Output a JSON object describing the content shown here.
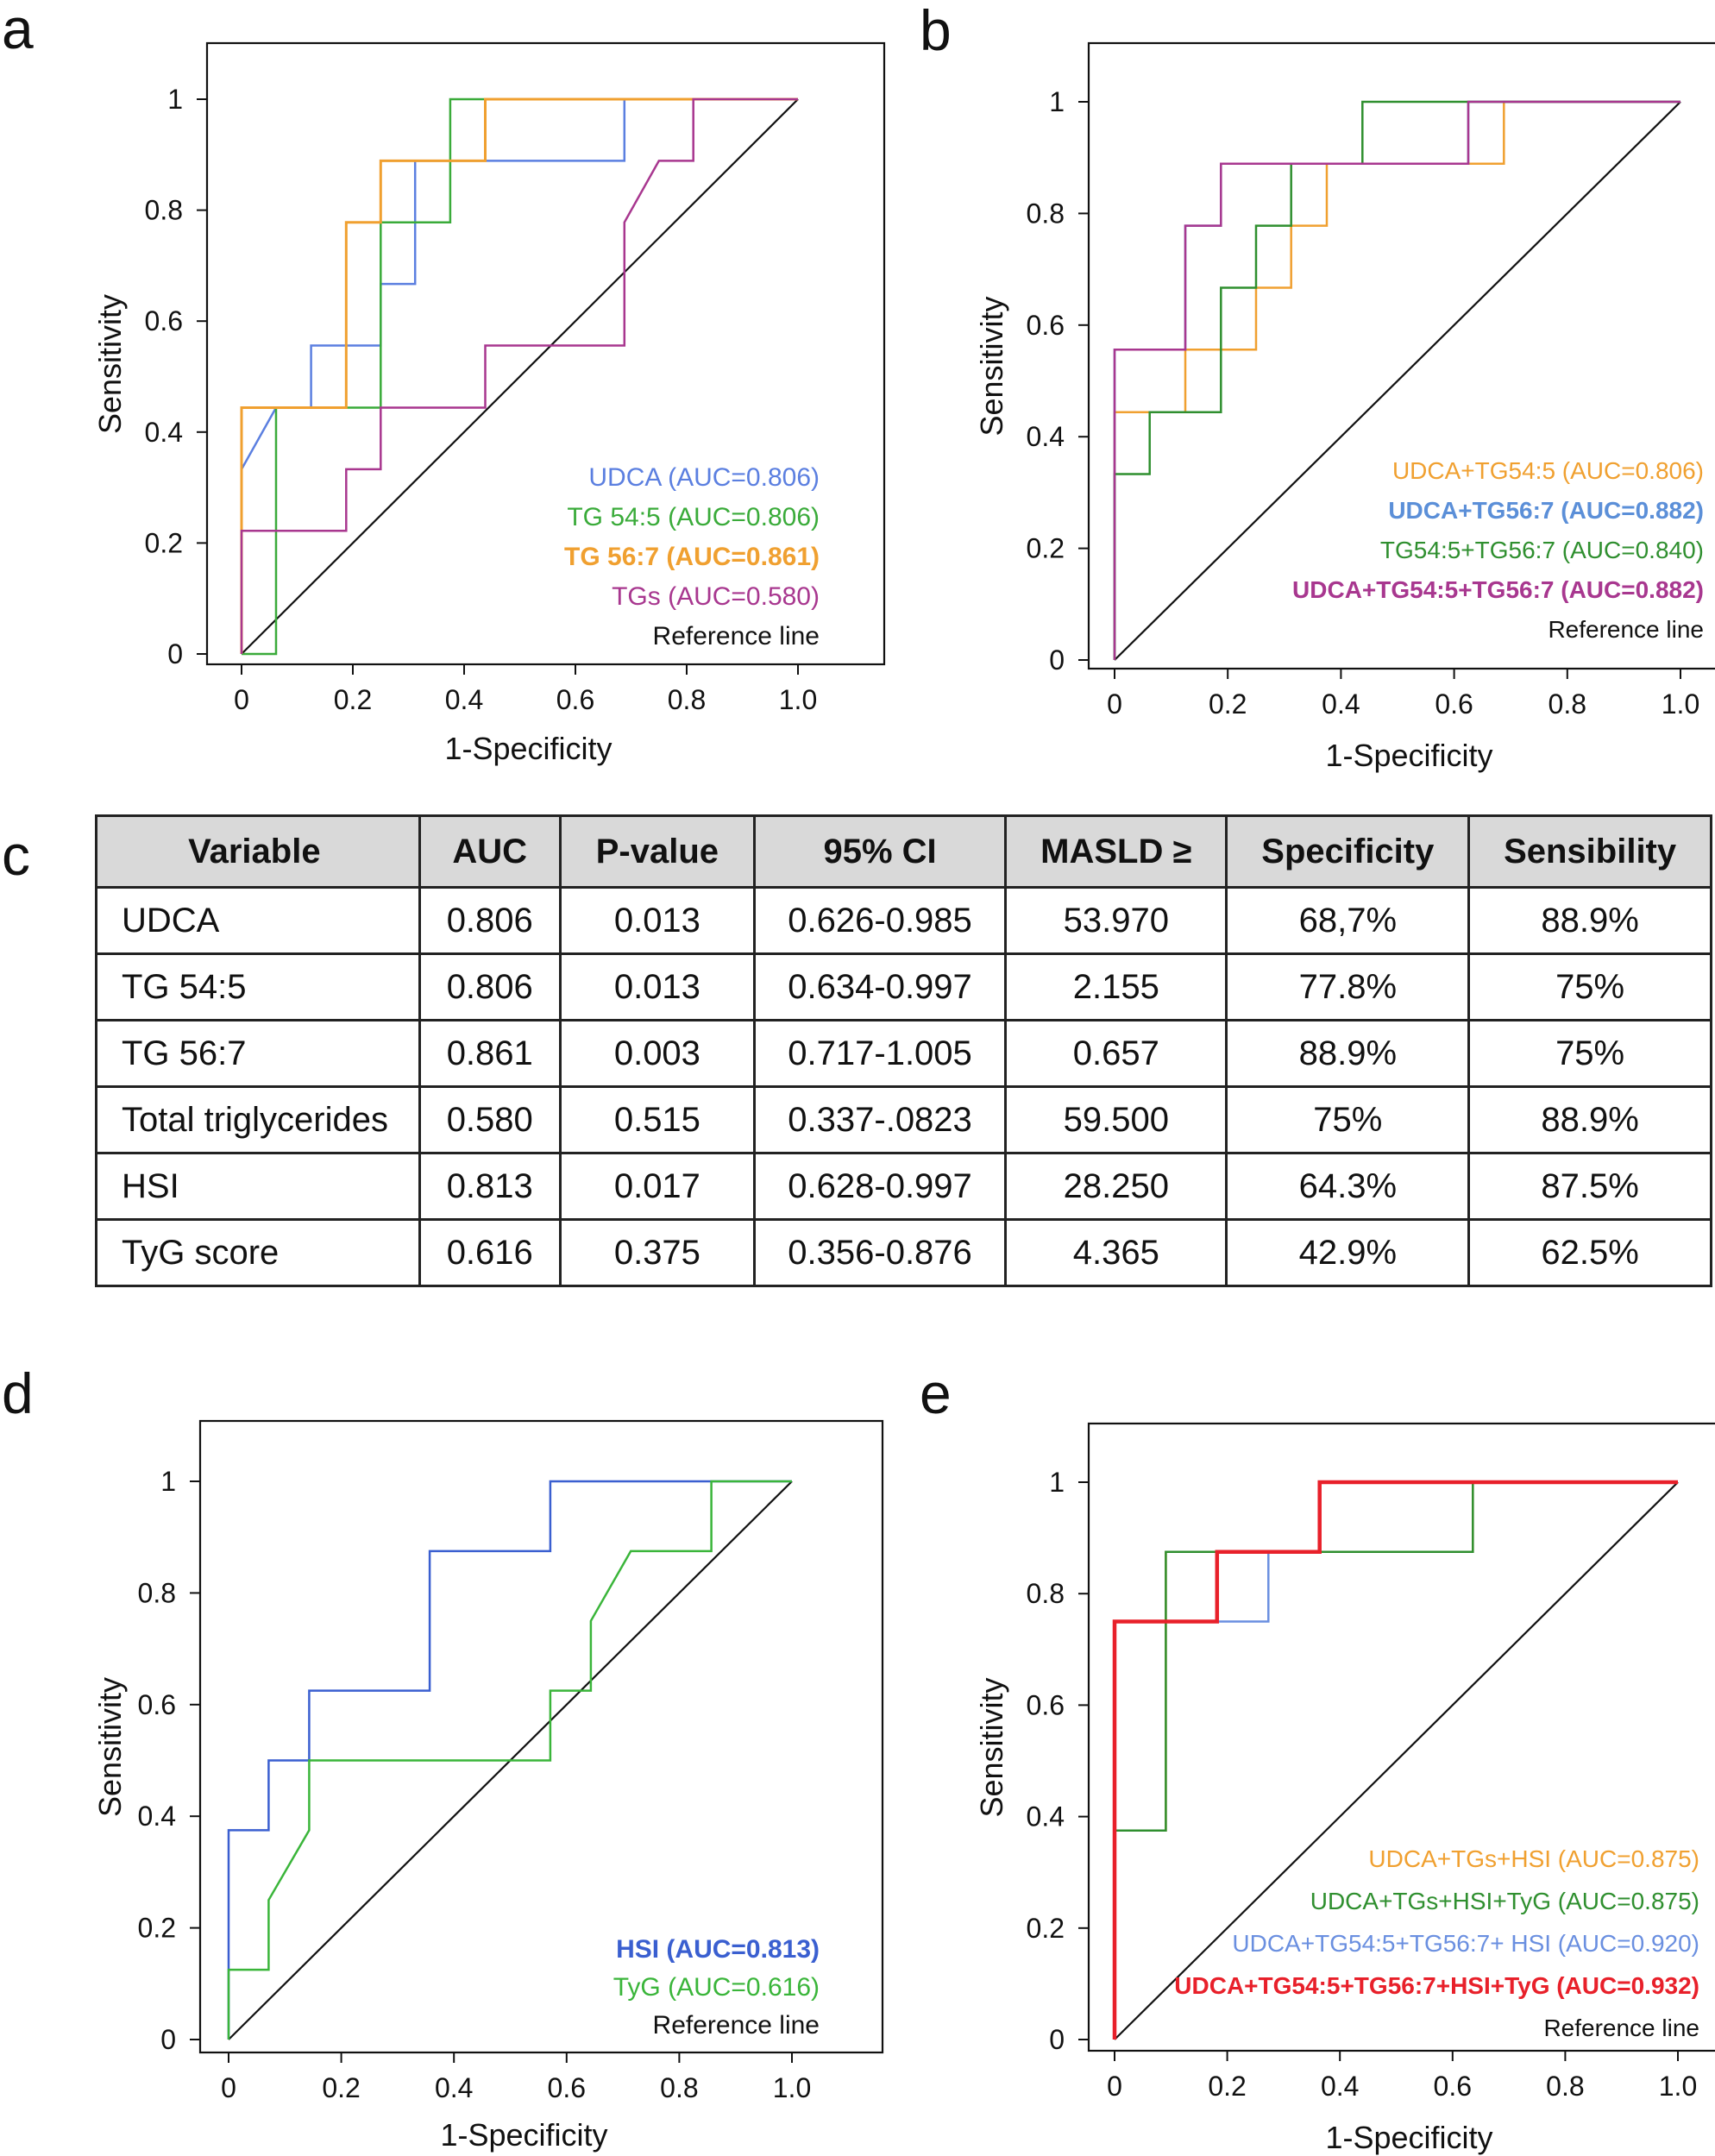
{
  "panel_letters": [
    "a",
    "b",
    "c",
    "d",
    "e"
  ],
  "chart_data": [
    {
      "panel": "a",
      "type": "line",
      "xlabel": "1-Specificity",
      "ylabel": "Sensitivity",
      "xlim": [
        0,
        1
      ],
      "ylim": [
        0,
        1
      ],
      "xticks": [
        "0",
        "0.2",
        "0.4",
        "0.6",
        "0.8",
        "1.0"
      ],
      "yticks": [
        "0",
        "0.2",
        "0.4",
        "0.6",
        "0.8",
        "1"
      ],
      "series": [
        {
          "name": "UDCA (AUC=0.806)",
          "color": "#5b7fe0",
          "bold": false,
          "width": 2.5,
          "x": [
            0,
            0,
            0,
            0.062,
            0.125,
            0.125,
            0.25,
            0.25,
            0.312,
            0.312,
            0.375,
            0.438,
            0.688,
            0.688,
            1
          ],
          "y": [
            0,
            0.333,
            0.333,
            0.444,
            0.444,
            0.556,
            0.556,
            0.667,
            0.667,
            0.889,
            0.889,
            0.889,
            0.889,
            1,
            1
          ]
        },
        {
          "name": "TG 54:5 (AUC=0.806)",
          "color": "#3aab3a",
          "bold": false,
          "width": 2.5,
          "x": [
            0,
            0.062,
            0.062,
            0.25,
            0.25,
            0.375,
            0.375,
            0.438,
            1
          ],
          "y": [
            0,
            0,
            0.444,
            0.444,
            0.778,
            0.778,
            1,
            1,
            1
          ]
        },
        {
          "name": "TG 56:7 (AUC=0.861)",
          "color": "#f0a030",
          "bold": true,
          "width": 3,
          "x": [
            0,
            0,
            0.188,
            0.188,
            0.25,
            0.25,
            0.438,
            0.438,
            1
          ],
          "y": [
            0,
            0.444,
            0.444,
            0.778,
            0.778,
            0.889,
            0.889,
            1,
            1
          ]
        },
        {
          "name": "TGs (AUC=0.580)",
          "color": "#a8378f",
          "bold": false,
          "width": 2.5,
          "x": [
            0,
            0,
            0.188,
            0.188,
            0.25,
            0.25,
            0.438,
            0.438,
            0.688,
            0.688,
            0.75,
            0.812,
            0.812,
            1
          ],
          "y": [
            0,
            0.222,
            0.222,
            0.333,
            0.333,
            0.444,
            0.444,
            0.556,
            0.556,
            0.778,
            0.889,
            0.889,
            1,
            1
          ]
        },
        {
          "name": "Reference line",
          "color": "#111111",
          "bold": false,
          "width": 2.2,
          "x": [
            0,
            1
          ],
          "y": [
            0,
            1
          ]
        }
      ]
    },
    {
      "panel": "b",
      "type": "line",
      "xlabel": "1-Specificity",
      "ylabel": "Sensitivity",
      "xlim": [
        0,
        1
      ],
      "ylim": [
        0,
        1
      ],
      "xticks": [
        "0",
        "0.2",
        "0.4",
        "0.6",
        "0.8",
        "1.0"
      ],
      "yticks": [
        "0",
        "0.2",
        "0.4",
        "0.6",
        "0.8",
        "1"
      ],
      "series": [
        {
          "name": "UDCA+TG54:5 (AUC=0.806)",
          "color": "#f0a030",
          "bold": false,
          "width": 2.5,
          "x": [
            0,
            0,
            0.062,
            0.125,
            0.125,
            0.25,
            0.25,
            0.312,
            0.312,
            0.375,
            0.375,
            0.625,
            0.688,
            0.688,
            1
          ],
          "y": [
            0,
            0.444,
            0.444,
            0.444,
            0.556,
            0.556,
            0.667,
            0.667,
            0.778,
            0.778,
            0.889,
            0.889,
            0.889,
            1,
            1
          ]
        },
        {
          "name": "UDCA+TG56:7 (AUC=0.882)",
          "color": "#5b8fd8",
          "bold": true,
          "width": 2.5,
          "x": [
            0,
            0,
            0.125,
            0.125,
            0.188,
            0.188,
            0.625,
            0.625,
            1
          ],
          "y": [
            0,
            0.556,
            0.556,
            0.778,
            0.778,
            0.889,
            0.889,
            1,
            1
          ]
        },
        {
          "name": "TG54:5+TG56:7 (AUC=0.840)",
          "color": "#2f8f2f",
          "bold": false,
          "width": 2.5,
          "x": [
            0,
            0,
            0.062,
            0.062,
            0.188,
            0.188,
            0.25,
            0.25,
            0.312,
            0.312,
            0.438,
            0.438,
            1
          ],
          "y": [
            0,
            0.333,
            0.333,
            0.444,
            0.444,
            0.667,
            0.667,
            0.778,
            0.778,
            0.889,
            0.889,
            1,
            1
          ]
        },
        {
          "name": "UDCA+TG54:5+TG56:7 (AUC=0.882)",
          "color": "#a8378f",
          "bold": true,
          "width": 2.5,
          "x": [
            0,
            0,
            0.125,
            0.125,
            0.188,
            0.188,
            0.625,
            0.625,
            1
          ],
          "y": [
            0,
            0.556,
            0.556,
            0.778,
            0.778,
            0.889,
            0.889,
            1,
            1
          ]
        },
        {
          "name": "Reference line",
          "color": "#111111",
          "bold": false,
          "width": 2.2,
          "x": [
            0,
            1
          ],
          "y": [
            0,
            1
          ]
        }
      ]
    },
    {
      "panel": "c",
      "type": "table",
      "columns": [
        "Variable",
        "AUC",
        "P-value",
        "95% CI",
        "MASLD ≥",
        "Specificity",
        "Sensibility"
      ],
      "rows": [
        [
          "UDCA",
          "0.806",
          "0.013",
          "0.626-0.985",
          "53.970",
          "68,7%",
          "88.9%"
        ],
        [
          "TG 54:5",
          "0.806",
          "0.013",
          "0.634-0.997",
          "2.155",
          "77.8%",
          "75%"
        ],
        [
          "TG 56:7",
          "0.861",
          "0.003",
          "0.717-1.005",
          "0.657",
          "88.9%",
          "75%"
        ],
        [
          "Total triglycerides",
          "0.580",
          "0.515",
          "0.337-.0823",
          "59.500",
          "75%",
          "88.9%"
        ],
        [
          "HSI",
          "0.813",
          "0.017",
          "0.628-0.997",
          "28.250",
          "64.3%",
          "87.5%"
        ],
        [
          "TyG score",
          "0.616",
          "0.375",
          "0.356-0.876",
          "4.365",
          "42.9%",
          "62.5%"
        ]
      ]
    },
    {
      "panel": "d",
      "type": "line",
      "xlabel": "1-Specificity",
      "ylabel": "Sensitivity",
      "xlim": [
        0,
        1
      ],
      "ylim": [
        0,
        1
      ],
      "xticks": [
        "0",
        "0.2",
        "0.4",
        "0.6",
        "0.8",
        "1.0"
      ],
      "yticks": [
        "0",
        "0.2",
        "0.4",
        "0.6",
        "0.8",
        "1"
      ],
      "series": [
        {
          "name": "HSI (AUC=0.813)",
          "color": "#3a5fd0",
          "bold": true,
          "width": 2.5,
          "x": [
            0,
            0,
            0.071,
            0.071,
            0.143,
            0.143,
            0.357,
            0.357,
            0.571,
            0.571,
            1
          ],
          "y": [
            0,
            0.375,
            0.375,
            0.5,
            0.5,
            0.625,
            0.625,
            0.875,
            0.875,
            1,
            1
          ]
        },
        {
          "name": "TyG (AUC=0.616)",
          "color": "#3ab53a",
          "bold": false,
          "width": 2.5,
          "x": [
            0,
            0,
            0.071,
            0.071,
            0.143,
            0.143,
            0.571,
            0.571,
            0.643,
            0.643,
            0.714,
            0.857,
            0.857,
            1
          ],
          "y": [
            0,
            0.125,
            0.125,
            0.25,
            0.375,
            0.5,
            0.5,
            0.625,
            0.625,
            0.75,
            0.875,
            0.875,
            1,
            1
          ]
        },
        {
          "name": "Reference line",
          "color": "#111111",
          "bold": false,
          "width": 2.2,
          "x": [
            0,
            1
          ],
          "y": [
            0,
            1
          ]
        }
      ]
    },
    {
      "panel": "e",
      "type": "line",
      "xlabel": "1-Specificity",
      "ylabel": "Sensitivity",
      "xlim": [
        0,
        1
      ],
      "ylim": [
        0,
        1
      ],
      "xticks": [
        "0",
        "0.2",
        "0.4",
        "0.6",
        "0.8",
        "1.0"
      ],
      "yticks": [
        "0",
        "0.2",
        "0.4",
        "0.6",
        "0.8",
        "1"
      ],
      "series": [
        {
          "name": "UDCA+TGs+HSI (AUC=0.875)",
          "color": "#f0a030",
          "bold": false,
          "width": 2.5,
          "x": [
            0,
            0,
            0.091,
            0.091,
            0.636,
            0.636,
            1
          ],
          "y": [
            0,
            0.375,
            0.375,
            0.875,
            0.875,
            1,
            1
          ]
        },
        {
          "name": "UDCA+TGs+HSI+TyG (AUC=0.875)",
          "color": "#2f8f2f",
          "bold": false,
          "width": 2.5,
          "x": [
            0,
            0,
            0.091,
            0.091,
            0.636,
            0.636,
            1
          ],
          "y": [
            0,
            0.375,
            0.375,
            0.875,
            0.875,
            1,
            1
          ]
        },
        {
          "name": "UDCA+TG54:5+TG56:7+ HSI (AUC=0.920)",
          "color": "#6a8fe0",
          "bold": false,
          "width": 2.5,
          "x": [
            0,
            0,
            0.182,
            0.182,
            0.273,
            0.273,
            0.364,
            0.364,
            1
          ],
          "y": [
            0,
            0.75,
            0.75,
            0.75,
            0.75,
            0.875,
            0.875,
            1,
            1
          ]
        },
        {
          "name": "UDCA+TG54:5+TG56:7+HSI+TyG (AUC=0.932)",
          "color": "#e8202a",
          "bold": true,
          "width": 4.5,
          "x": [
            0,
            0,
            0.182,
            0.182,
            0.364,
            0.364,
            1
          ],
          "y": [
            0,
            0.75,
            0.75,
            0.875,
            0.875,
            1,
            1
          ]
        },
        {
          "name": "Reference line",
          "color": "#111111",
          "bold": false,
          "width": 2.2,
          "x": [
            0,
            1
          ],
          "y": [
            0,
            1
          ]
        }
      ]
    }
  ]
}
